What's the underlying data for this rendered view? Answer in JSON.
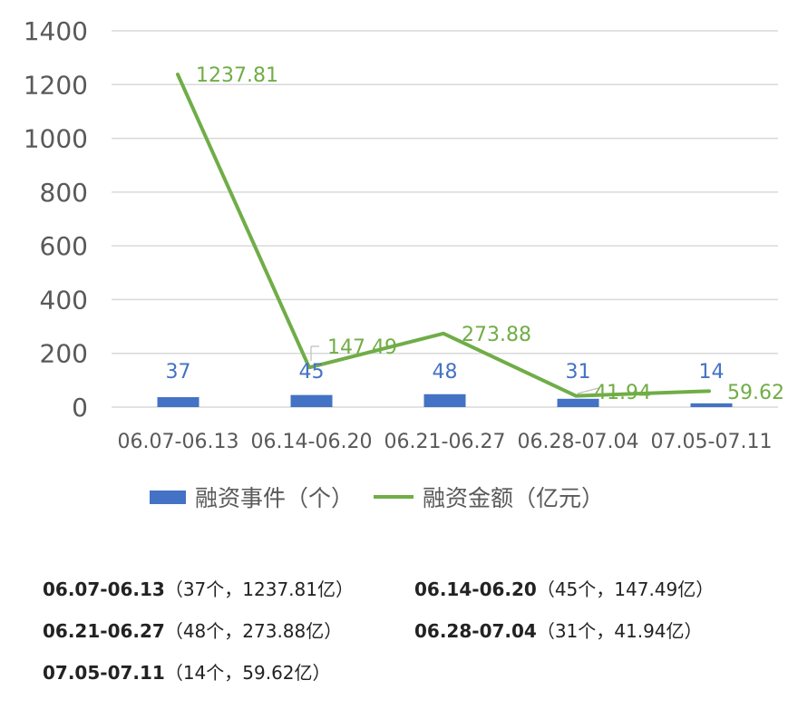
{
  "chart_data": {
    "type": "bar+line",
    "categories": [
      "06.07-06.13",
      "06.14-06.20",
      "06.21-06.27",
      "06.28-07.04",
      "07.05-07.11"
    ],
    "series": [
      {
        "name": "融资事件（个）",
        "type": "bar",
        "values": [
          37,
          45,
          48,
          31,
          14
        ],
        "labels": [
          "37",
          "45",
          "48",
          "31",
          "14"
        ],
        "color": "#4472C4"
      },
      {
        "name": "融资金额（亿元）",
        "type": "line",
        "values": [
          1237.81,
          147.49,
          273.88,
          41.94,
          59.62
        ],
        "labels": [
          "1237.81",
          "147.49",
          "273.88",
          "41.94",
          "59.62"
        ],
        "color": "#70AD47"
      }
    ],
    "y_ticks": [
      "0",
      "200",
      "400",
      "600",
      "800",
      "1000",
      "1200",
      "1400"
    ],
    "ylim": [
      0,
      1400
    ],
    "grid": true,
    "legend_position": "bottom"
  },
  "legend": {
    "bar_label": "融资事件（个）",
    "line_label": "融资金额（亿元）"
  },
  "notes": [
    {
      "period": "06.07-06.13",
      "detail": "（37个，1237.81亿）"
    },
    {
      "period": "06.14-06.20",
      "detail": "（45个，147.49亿）"
    },
    {
      "period": "06.21-06.27",
      "detail": "（48个，273.88亿）"
    },
    {
      "period": "06.28-07.04",
      "detail": "（31个，41.94亿）"
    },
    {
      "period": "07.05-07.11",
      "detail": "（14个，59.62亿）"
    }
  ]
}
